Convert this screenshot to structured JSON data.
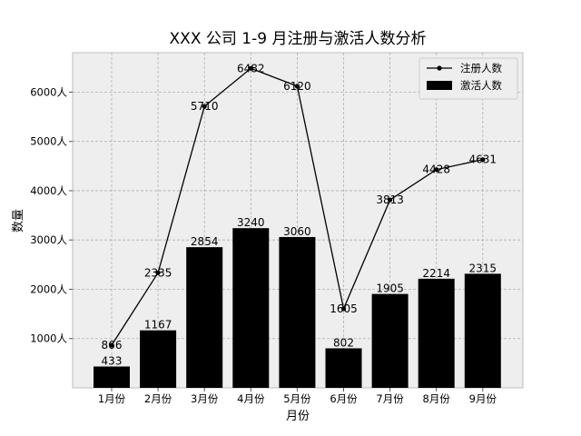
{
  "chart_data": {
    "type": "bar+line",
    "title": "XXX 公司 1-9 月注册与激活人数分析",
    "xlabel": "月份",
    "ylabel": "数量",
    "categories": [
      "1月份",
      "2月份",
      "3月份",
      "4月份",
      "5月份",
      "6月份",
      "7月份",
      "8月份",
      "9月份"
    ],
    "series": [
      {
        "name": "注册人数",
        "type": "line",
        "color": "#000000",
        "values": [
          866,
          2335,
          5710,
          6482,
          6120,
          1605,
          3813,
          4428,
          4631
        ]
      },
      {
        "name": "激活人数",
        "type": "bar",
        "color": "#000000",
        "values": [
          433,
          1167,
          2854,
          3240,
          3060,
          802,
          1905,
          2214,
          2315
        ]
      }
    ],
    "ylim": [
      0,
      6800
    ],
    "yticks": [
      1000,
      2000,
      3000,
      4000,
      5000,
      6000
    ],
    "ytick_labels": [
      "1000人",
      "2000人",
      "3000人",
      "4000人",
      "5000人",
      "6000人"
    ],
    "grid": true,
    "legend_position": "top-right",
    "plot_background": "#eeeeee",
    "grid_color": "#b0b0b0"
  }
}
